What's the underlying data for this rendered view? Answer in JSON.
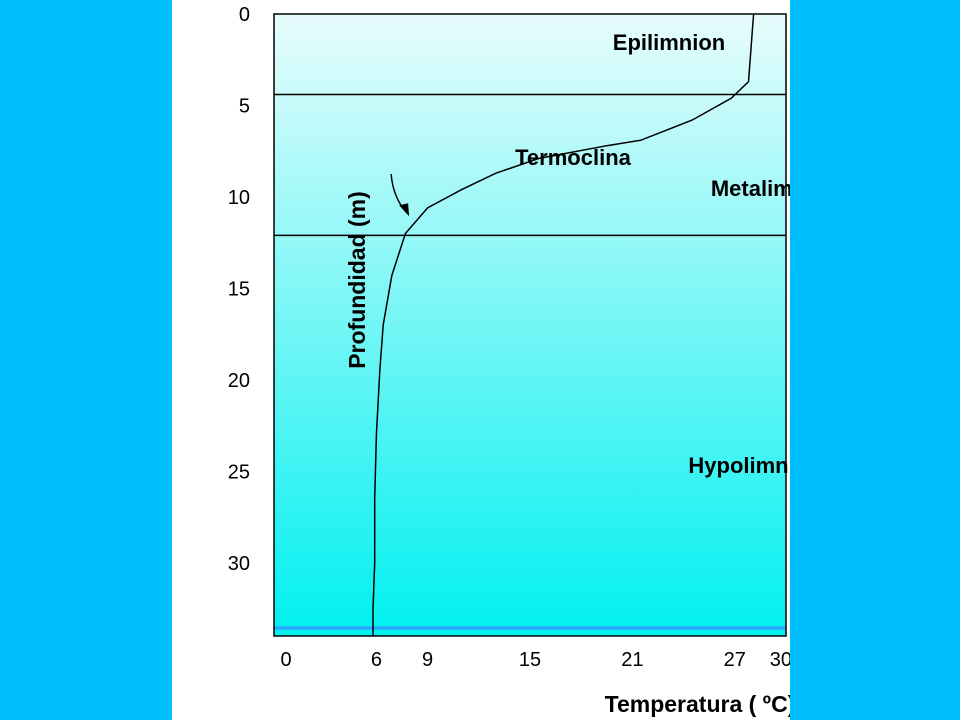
{
  "chart_data": {
    "type": "line",
    "xlabel": "Temperatura ( ºC)",
    "ylabel": "Profundidad (m)",
    "xlim": [
      0,
      30
    ],
    "ylim": [
      0,
      34
    ],
    "y_inverted": true,
    "x_ticks": [
      "0",
      "6",
      "9",
      "15",
      "21",
      "27",
      "30"
    ],
    "y_ticks": [
      "0",
      "5",
      "10",
      "15",
      "20",
      "25",
      "30"
    ],
    "series": [
      {
        "x": [
          28.1,
          27.8,
          26.8,
          24.5,
          21.5,
          19.5,
          15.5,
          13.0,
          11.0,
          9.0,
          7.7,
          6.9,
          6.4,
          6.2,
          6.0,
          5.9,
          5.9,
          5.8,
          5.8
        ],
        "y": [
          0,
          3.7,
          4.6,
          5.8,
          6.9,
          7.2,
          7.9,
          8.7,
          9.6,
          10.6,
          12.0,
          14.3,
          17.0,
          19.5,
          23.0,
          26.5,
          30.0,
          32.5,
          34.0
        ]
      }
    ],
    "layers": [
      {
        "name": "Epilimnion",
        "top": 0,
        "bottom": 4.4
      },
      {
        "name": "Metalimnion",
        "top": 4.4,
        "bottom": 12.1
      },
      {
        "name": "Hypolimnion",
        "top": 12.1,
        "bottom": 34
      }
    ],
    "annotations": [
      {
        "text": "Termoclina",
        "points_to": [
          7.8,
          11.0
        ]
      }
    ],
    "colors": {
      "background": "#00BFFF",
      "slide": "#FFFFFF",
      "gradient_top": "#E8FCFC",
      "gradient_bottom": "#00F0F0",
      "line": "#000000"
    }
  }
}
